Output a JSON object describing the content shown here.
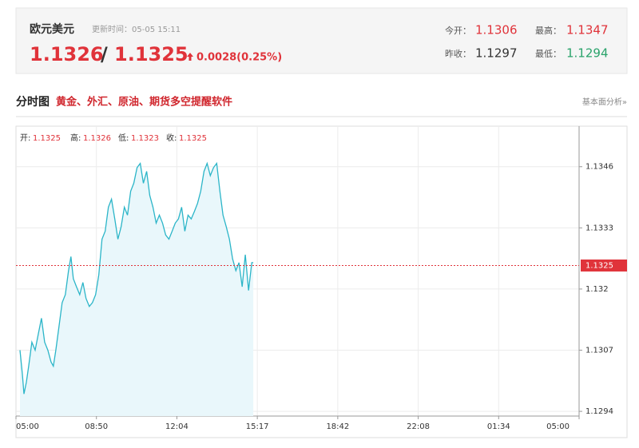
{
  "header": {
    "title": "欧元美元",
    "update_time": "更新时间：05-05 15:11",
    "bid": "1.1326",
    "separator": "/",
    "ask": "1.1325",
    "change": "0.0028(0.25%)",
    "stats": [
      {
        "label": "今开：",
        "value": "1.1306"
      },
      {
        "label": "最高：",
        "value": "1.1347"
      },
      {
        "label": "昨收：",
        "value": "1.1297"
      },
      {
        "label": "最低：",
        "value": "1.1294"
      }
    ]
  },
  "section": {
    "title": "分时图",
    "promo": "黄金、外汇、原油、期货多空提醒软件",
    "link": "基本面分析»"
  },
  "chart_data": {
    "type": "line",
    "info": [
      {
        "label": "开:",
        "value": "1.1325"
      },
      {
        "label": "高:",
        "value": "1.1326"
      },
      {
        "label": "低:",
        "value": "1.1323"
      },
      {
        "label": "收:",
        "value": "1.1325"
      }
    ],
    "x": [
      0.05,
      0.079,
      0.099,
      0.129,
      0.158,
      0.198,
      0.238,
      0.277,
      0.317,
      0.356,
      0.396,
      0.436,
      0.465,
      0.495,
      0.535,
      0.574,
      0.614,
      0.653,
      0.683,
      0.713,
      0.752,
      0.792,
      0.832,
      0.871,
      0.911,
      0.95,
      0.99,
      1.03,
      1.069,
      1.109,
      1.149,
      1.188,
      1.228,
      1.267,
      1.307,
      1.347,
      1.386,
      1.426,
      1.465,
      1.505,
      1.545,
      1.584,
      1.624,
      1.663,
      1.703,
      1.743,
      1.782,
      1.822,
      1.861,
      1.901,
      1.941,
      1.98,
      2.02,
      2.059,
      2.099,
      2.139,
      2.178,
      2.218,
      2.257,
      2.297,
      2.337,
      2.376,
      2.416,
      2.455,
      2.495,
      2.535,
      2.574,
      2.614,
      2.653,
      2.693,
      2.733,
      2.772,
      2.812,
      2.851,
      2.891,
      2.931,
      2.95
    ],
    "series": [
      {
        "color": "#2bb5c8",
        "fill": "#e9f7fb",
        "values": [
          1.1307,
          1.13019,
          1.12977,
          1.13002,
          1.13036,
          1.13087,
          1.1307,
          1.13104,
          1.13138,
          1.13087,
          1.1307,
          1.13045,
          1.13036,
          1.1307,
          1.13121,
          1.13171,
          1.13188,
          1.13239,
          1.13269,
          1.13222,
          1.13205,
          1.13188,
          1.13214,
          1.1318,
          1.13163,
          1.13171,
          1.13188,
          1.1323,
          1.13306,
          1.13323,
          1.13374,
          1.13391,
          1.13349,
          1.13306,
          1.13332,
          1.13374,
          1.13357,
          1.13408,
          1.13425,
          1.13458,
          1.13467,
          1.13425,
          1.1345,
          1.13399,
          1.13374,
          1.1334,
          1.13357,
          1.1334,
          1.13315,
          1.13306,
          1.13323,
          1.1334,
          1.13349,
          1.13374,
          1.13323,
          1.13357,
          1.13349,
          1.13365,
          1.13382,
          1.13408,
          1.1345,
          1.13467,
          1.13441,
          1.13458,
          1.13467,
          1.13408,
          1.13357,
          1.13332,
          1.13306,
          1.13264,
          1.13239,
          1.13256,
          1.13205,
          1.13273,
          1.13197,
          1.13256,
          1.13256
        ]
      }
    ],
    "xlim": [
      0,
      7
    ],
    "xticks": [
      {
        "value": 0,
        "label": "05:00"
      },
      {
        "value": 1,
        "label": "08:50"
      },
      {
        "value": 2,
        "label": "12:04"
      },
      {
        "value": 3,
        "label": "15:17"
      },
      {
        "value": 4,
        "label": "18:42"
      },
      {
        "value": 5,
        "label": "22:08"
      },
      {
        "value": 6,
        "label": "01:34"
      },
      {
        "value": 7,
        "label": "05:00"
      }
    ],
    "ylim": [
      1.1293,
      1.1354
    ],
    "yticks": [
      1.1294,
      1.1307,
      1.132,
      1.1333,
      1.1346
    ],
    "ref_line": {
      "value": 1.1325,
      "label": "1.1325",
      "color": "#e0333a"
    },
    "grid": true
  }
}
